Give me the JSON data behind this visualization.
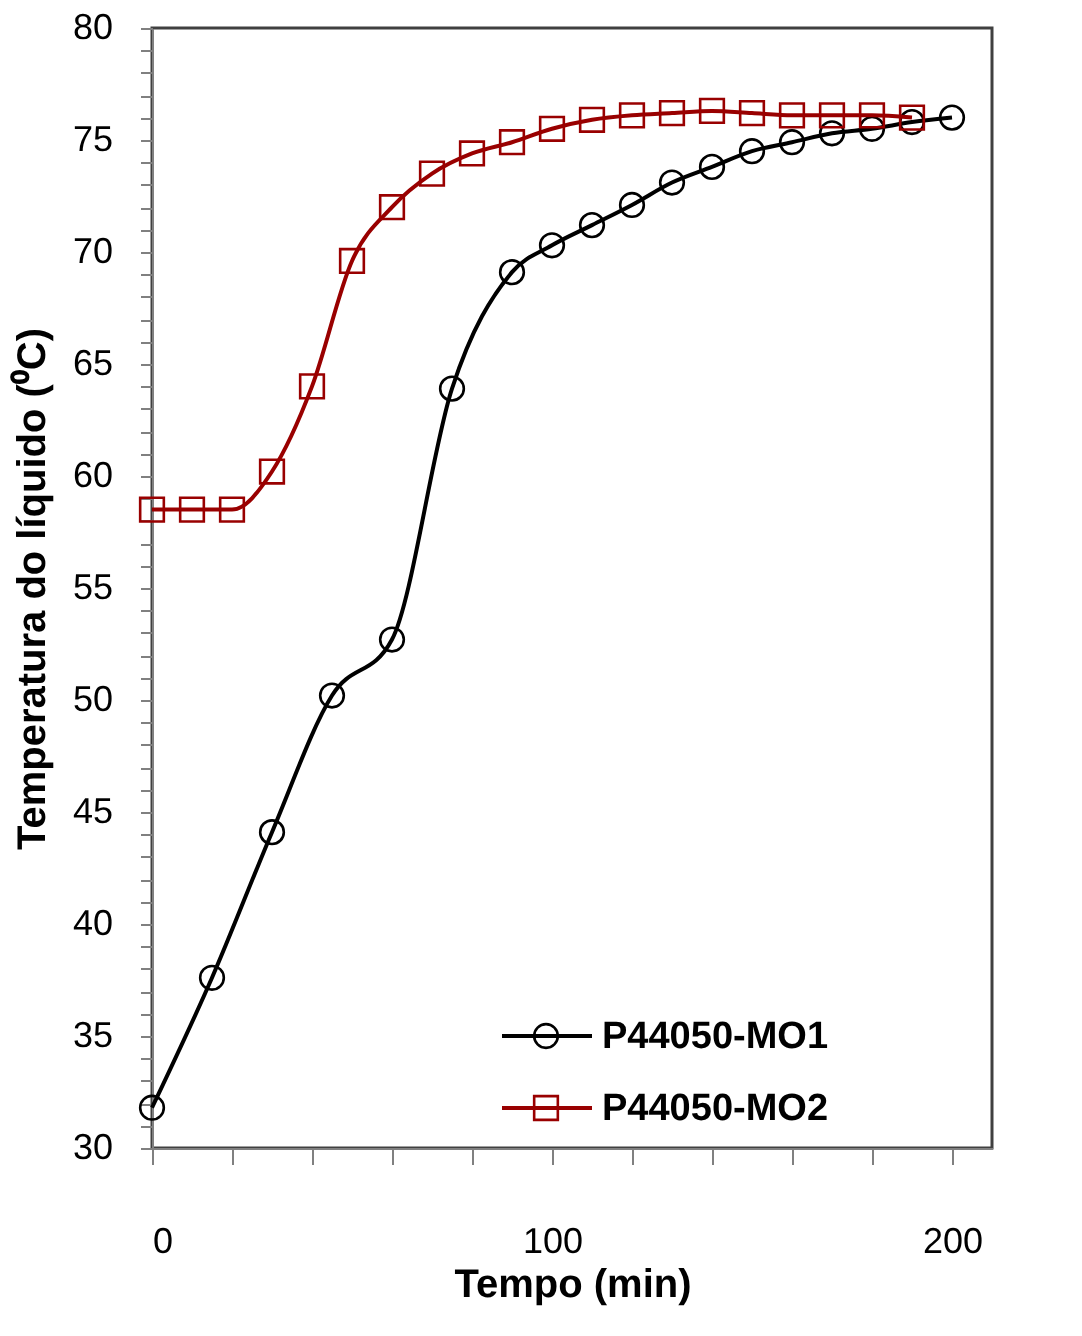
{
  "chart_data": {
    "type": "line",
    "xlabel": "Tempo (min)",
    "ylabel": "Temperatura do líquido (⁰C)",
    "xlim": [
      0,
      210
    ],
    "ylim": [
      30,
      80
    ],
    "xticks": [
      0,
      {
        "value": 20,
        "label": null
      },
      {
        "value": 40,
        "label": null
      },
      {
        "value": 60,
        "label": null
      },
      {
        "value": 80,
        "label": null
      },
      100,
      {
        "value": 120,
        "label": null
      },
      {
        "value": 140,
        "label": null
      },
      {
        "value": 160,
        "label": null
      },
      {
        "value": 180,
        "label": null
      },
      200
    ],
    "yticks": [
      30,
      {
        "value": 31,
        "label": null
      },
      {
        "value": 32,
        "label": null
      },
      {
        "value": 33,
        "label": null
      },
      {
        "value": 34,
        "label": null
      },
      35,
      {
        "value": 36,
        "label": null
      },
      {
        "value": 37,
        "label": null
      },
      {
        "value": 38,
        "label": null
      },
      {
        "value": 39,
        "label": null
      },
      40,
      {
        "value": 41,
        "label": null
      },
      {
        "value": 42,
        "label": null
      },
      {
        "value": 43,
        "label": null
      },
      {
        "value": 44,
        "label": null
      },
      45,
      {
        "value": 46,
        "label": null
      },
      {
        "value": 47,
        "label": null
      },
      {
        "value": 48,
        "label": null
      },
      {
        "value": 49,
        "label": null
      },
      50,
      {
        "value": 51,
        "label": null
      },
      {
        "value": 52,
        "label": null
      },
      {
        "value": 53,
        "label": null
      },
      {
        "value": 54,
        "label": null
      },
      55,
      {
        "value": 56,
        "label": null
      },
      {
        "value": 57,
        "label": null
      },
      {
        "value": 58,
        "label": null
      },
      {
        "value": 59,
        "label": null
      },
      60,
      {
        "value": 61,
        "label": null
      },
      {
        "value": 62,
        "label": null
      },
      {
        "value": 63,
        "label": null
      },
      {
        "value": 64,
        "label": null
      },
      65,
      {
        "value": 66,
        "label": null
      },
      {
        "value": 67,
        "label": null
      },
      {
        "value": 68,
        "label": null
      },
      {
        "value": 69,
        "label": null
      },
      70,
      {
        "value": 71,
        "label": null
      },
      {
        "value": 72,
        "label": null
      },
      {
        "value": 73,
        "label": null
      },
      {
        "value": 74,
        "label": null
      },
      75,
      {
        "value": 76,
        "label": null
      },
      {
        "value": 77,
        "label": null
      },
      {
        "value": 78,
        "label": null
      },
      {
        "value": 79,
        "label": null
      },
      80
    ],
    "grid": false,
    "legend": "bottom right",
    "line_style": "solid",
    "series": [
      {
        "name": "P44050-MO1",
        "color": "#000000",
        "marker": "circle",
        "x": [
          0,
          15,
          30,
          45,
          60,
          75,
          90,
          100,
          110,
          120,
          130,
          140,
          150,
          160,
          170,
          180,
          190,
          200
        ],
        "values": [
          31.8,
          37.6,
          44.1,
          50.2,
          52.7,
          63.9,
          69.1,
          70.3,
          71.2,
          72.1,
          73.1,
          73.8,
          74.5,
          74.9,
          75.3,
          75.5,
          75.8,
          76.0
        ]
      },
      {
        "name": "P44050-MO2",
        "color": "#990000",
        "marker": "square",
        "x": [
          0,
          10,
          20,
          30,
          40,
          50,
          60,
          70,
          80,
          90,
          100,
          110,
          120,
          130,
          140,
          150,
          160,
          170,
          180,
          190
        ],
        "values": [
          58.5,
          58.5,
          58.5,
          60.2,
          64.0,
          69.6,
          72.0,
          73.5,
          74.4,
          74.9,
          75.5,
          75.9,
          76.1,
          76.2,
          76.3,
          76.2,
          76.1,
          76.1,
          76.1,
          76.0
        ]
      }
    ]
  }
}
